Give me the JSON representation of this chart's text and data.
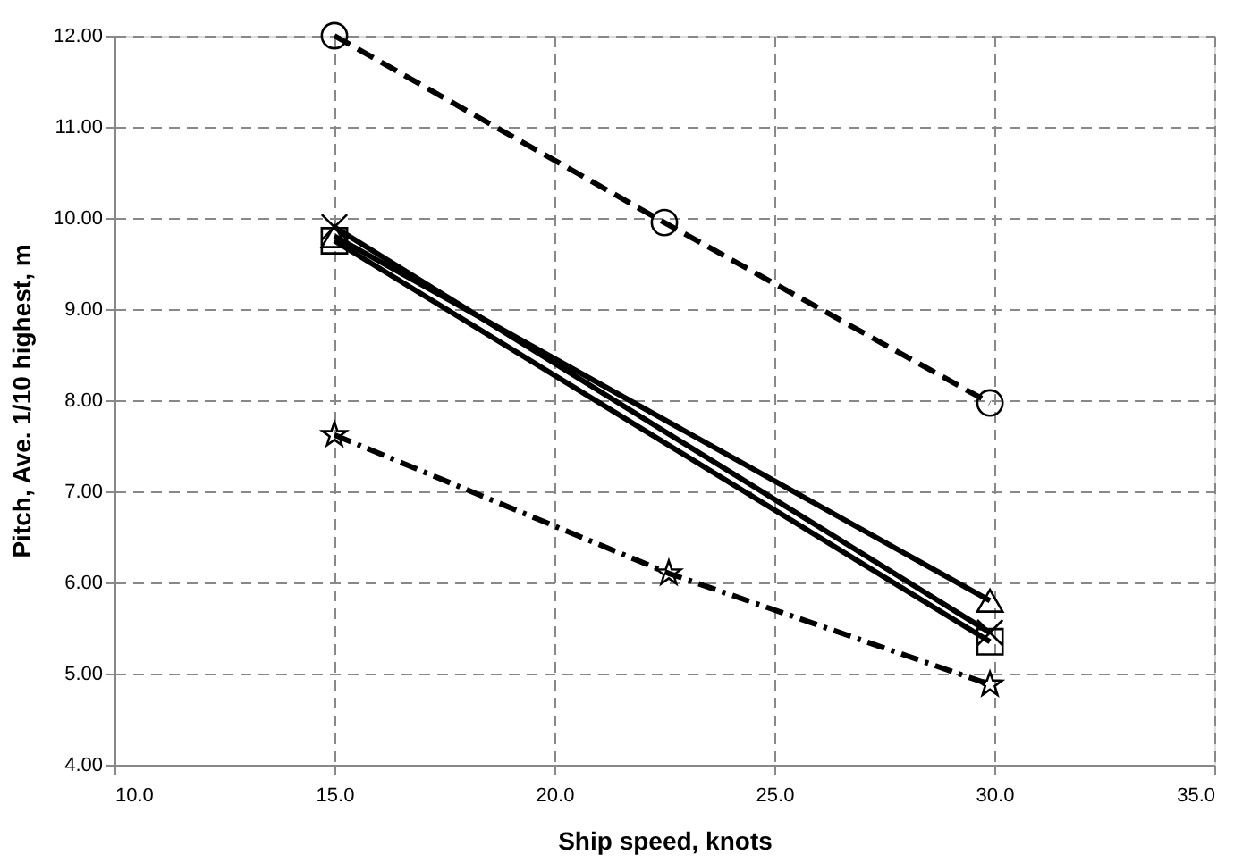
{
  "chart_data": {
    "type": "line",
    "xlabel": "Ship speed, knots",
    "ylabel": "Pitch, Ave. 1/10 highest, m",
    "xlim": [
      10,
      35
    ],
    "xticks": [
      {
        "value": 10,
        "label": "10.0"
      },
      {
        "value": 15,
        "label": "15.0"
      },
      {
        "value": 20,
        "label": "20.0"
      },
      {
        "value": 25,
        "label": "25.0"
      },
      {
        "value": 30,
        "label": "30.0"
      },
      {
        "value": 35,
        "label": "35.0"
      }
    ],
    "ylim": [
      4,
      12
    ],
    "yticks": [
      {
        "value": 4,
        "label": "4.00"
      },
      {
        "value": 5,
        "label": "5.00"
      },
      {
        "value": 6,
        "label": "6.00"
      },
      {
        "value": 7,
        "label": "7.00"
      },
      {
        "value": 8,
        "label": "8.00"
      },
      {
        "value": 9,
        "label": "9.00"
      },
      {
        "value": 10,
        "label": "10.00"
      },
      {
        "value": 11,
        "label": "11.00"
      },
      {
        "value": 12,
        "label": "12.00"
      }
    ],
    "grid": true,
    "series": [
      {
        "color": "#000000",
        "x": [
          15,
          22.5,
          29.9
        ],
        "values": [
          12.0,
          9.95,
          7.97
        ],
        "marker": "circle",
        "line_style": "dashed"
      },
      {
        "color": "#000000",
        "x": [
          15,
          29.9
        ],
        "values": [
          9.8,
          5.8
        ],
        "marker": "triangle",
        "line_style": "solid"
      },
      {
        "color": "#000000",
        "x": [
          15,
          29.9
        ],
        "values": [
          9.9,
          5.45
        ],
        "marker": "cross",
        "line_style": "solid"
      },
      {
        "color": "#000000",
        "x": [
          15,
          29.9
        ],
        "values": [
          9.75,
          5.35
        ],
        "marker": "square",
        "line_style": "solid"
      },
      {
        "color": "#000000",
        "x": [
          15,
          22.6,
          29.9
        ],
        "values": [
          7.62,
          6.1,
          4.88
        ],
        "marker": "star",
        "line_style": "dashdot"
      }
    ]
  }
}
